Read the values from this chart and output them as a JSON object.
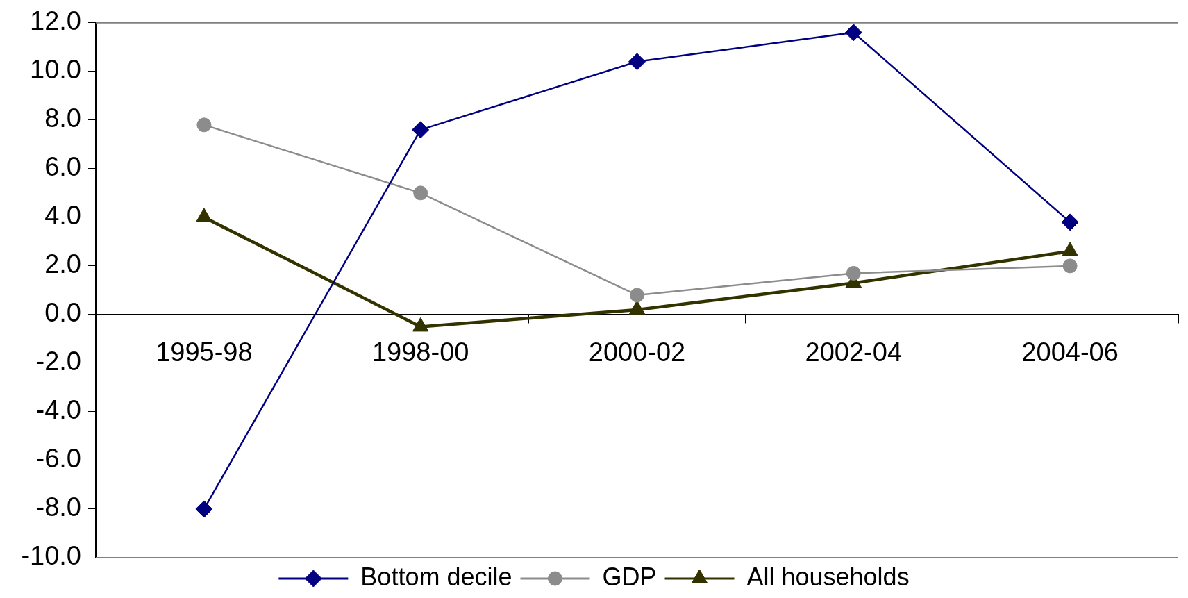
{
  "chart_data": {
    "type": "line",
    "categories": [
      "1995-98",
      "1998-00",
      "2000-02",
      "2002-04",
      "2004-06"
    ],
    "series": [
      {
        "name": "Bottom decile",
        "color": "#000080",
        "marker": "diamond",
        "values": [
          -8.0,
          7.6,
          10.4,
          11.6,
          3.8
        ]
      },
      {
        "name": "GDP",
        "color": "#8c8c8c",
        "marker": "circle",
        "values": [
          7.8,
          5.0,
          0.8,
          1.7,
          2.0
        ]
      },
      {
        "name": "All households",
        "color": "#333300",
        "marker": "triangle",
        "values": [
          4.0,
          -0.5,
          0.2,
          1.3,
          2.6
        ]
      }
    ],
    "ylim": [
      -10,
      12
    ],
    "yticks": [
      {
        "value": -10,
        "label": "-10.0"
      },
      {
        "value": -8,
        "label": "-8.0"
      },
      {
        "value": -6,
        "label": "-6.0"
      },
      {
        "value": -4,
        "label": "-4.0"
      },
      {
        "value": -2,
        "label": "-2.0"
      },
      {
        "value": 0,
        "label": "0.0"
      },
      {
        "value": 2,
        "label": "2.0"
      },
      {
        "value": 4,
        "label": "4.0"
      },
      {
        "value": 6,
        "label": "6.0"
      },
      {
        "value": 8,
        "label": "8.0"
      },
      {
        "value": 10,
        "label": "10.0"
      },
      {
        "value": 12,
        "label": "12.0"
      }
    ],
    "legend": "bottom"
  }
}
